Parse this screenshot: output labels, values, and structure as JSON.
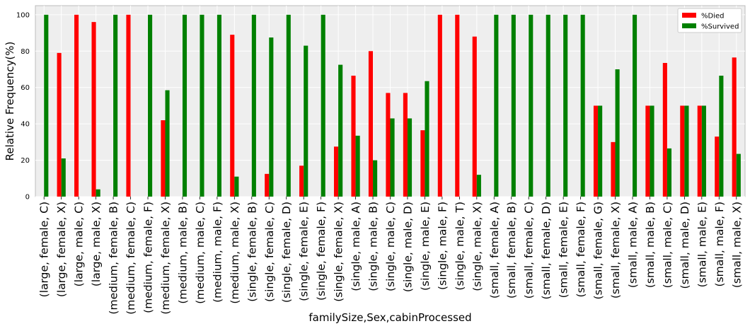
{
  "chart_data": {
    "type": "bar",
    "xlabel": "familySize,Sex,cabinProcessed",
    "ylabel": "Relative Frequency(%)",
    "ylim": [
      0,
      105
    ],
    "yticks": [
      0,
      20,
      40,
      60,
      80,
      100
    ],
    "grid": true,
    "legend_position": "top-right",
    "categories": [
      "(large, female, C)",
      "(large, female, X)",
      "(large, male, C)",
      "(large, male, X)",
      "(medium, female, B)",
      "(medium, female, C)",
      "(medium, female, F)",
      "(medium, female, X)",
      "(medium, male, B)",
      "(medium, male, C)",
      "(medium, male, F)",
      "(medium, male, X)",
      "(single, female, B)",
      "(single, female, C)",
      "(single, female, D)",
      "(single, female, E)",
      "(single, female, F)",
      "(single, female, X)",
      "(single, male, A)",
      "(single, male, B)",
      "(single, male, C)",
      "(single, male, D)",
      "(single, male, E)",
      "(single, male, F)",
      "(single, male, T)",
      "(single, male, X)",
      "(small, female, A)",
      "(small, female, B)",
      "(small, female, C)",
      "(small, female, D)",
      "(small, female, E)",
      "(small, female, F)",
      "(small, female, G)",
      "(small, female, X)",
      "(small, male, A)",
      "(small, male, B)",
      "(small, male, C)",
      "(small, male, D)",
      "(small, male, E)",
      "(small, male, F)",
      "(small, male, X)"
    ],
    "series": [
      {
        "name": "%Died",
        "color": "#ff0000",
        "values": [
          0,
          79,
          100,
          96,
          0,
          100,
          0,
          42,
          0,
          0,
          0,
          89,
          0,
          12.5,
          0,
          17,
          0,
          27.5,
          66.5,
          80,
          57,
          57,
          36.5,
          100,
          100,
          88,
          0,
          0,
          0,
          0,
          0,
          0,
          50,
          30,
          0,
          50,
          73.5,
          50,
          50,
          33,
          76.5
        ]
      },
      {
        "name": "%Survived",
        "color": "#008000",
        "values": [
          100,
          21,
          0,
          4,
          100,
          0,
          100,
          58.5,
          100,
          100,
          100,
          11,
          100,
          87.5,
          100,
          83,
          100,
          72.5,
          33.5,
          20,
          43,
          43,
          63.5,
          0,
          0,
          12,
          100,
          100,
          100,
          100,
          100,
          100,
          50,
          70,
          100,
          50,
          26.5,
          50,
          50,
          66.5,
          23.5
        ]
      }
    ]
  }
}
